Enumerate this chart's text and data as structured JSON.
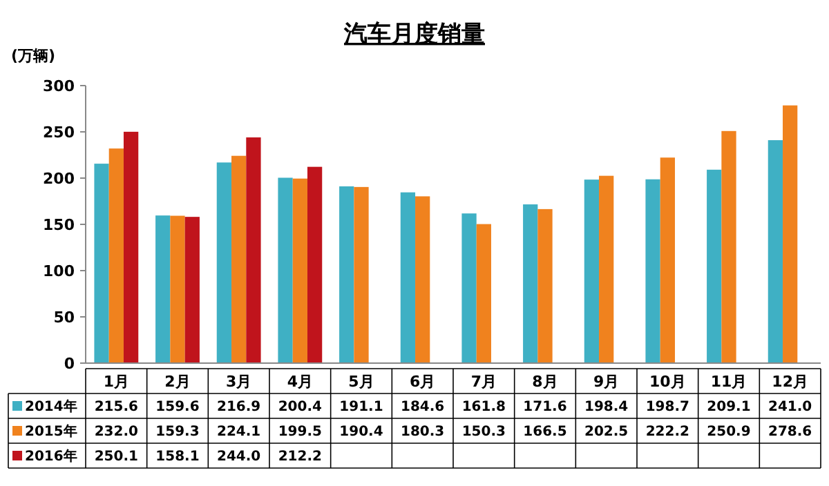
{
  "chart_data": {
    "type": "bar",
    "title": "汽车月度销量",
    "ylabel": "(万辆)",
    "categories": [
      "1月",
      "2月",
      "3月",
      "4月",
      "5月",
      "6月",
      "7月",
      "8月",
      "9月",
      "10月",
      "11月",
      "12月"
    ],
    "series": [
      {
        "name": "2014年",
        "color": "#3fb0c4",
        "values": [
          215.6,
          159.6,
          216.9,
          200.4,
          191.1,
          184.6,
          161.8,
          171.6,
          198.4,
          198.7,
          209.1,
          241.0
        ],
        "value_labels": [
          "215.6",
          "159.6",
          "216.9",
          "200.4",
          "191.1",
          "184.6",
          "161.8",
          "171.6",
          "198.4",
          "198.7",
          "209.1",
          "241.0"
        ]
      },
      {
        "name": "2015年",
        "color": "#f0821e",
        "values": [
          232.0,
          159.3,
          224.1,
          199.5,
          190.4,
          180.3,
          150.3,
          166.5,
          202.5,
          222.2,
          250.9,
          278.6
        ],
        "value_labels": [
          "232.0",
          "159.3",
          "224.1",
          "199.5",
          "190.4",
          "180.3",
          "150.3",
          "166.5",
          "202.5",
          "222.2",
          "250.9",
          "278.6"
        ]
      },
      {
        "name": "2016年",
        "color": "#c0141c",
        "values": [
          250.1,
          158.1,
          244.0,
          212.2,
          null,
          null,
          null,
          null,
          null,
          null,
          null,
          null
        ],
        "value_labels": [
          "250.1",
          "158.1",
          "244.0",
          "212.2",
          null,
          null,
          null,
          null,
          null,
          null,
          null,
          null
        ]
      }
    ],
    "ylim": [
      0,
      300
    ],
    "yticks": [
      0,
      50,
      100,
      150,
      200,
      250,
      300
    ],
    "grid": false,
    "legend": "bottom"
  }
}
